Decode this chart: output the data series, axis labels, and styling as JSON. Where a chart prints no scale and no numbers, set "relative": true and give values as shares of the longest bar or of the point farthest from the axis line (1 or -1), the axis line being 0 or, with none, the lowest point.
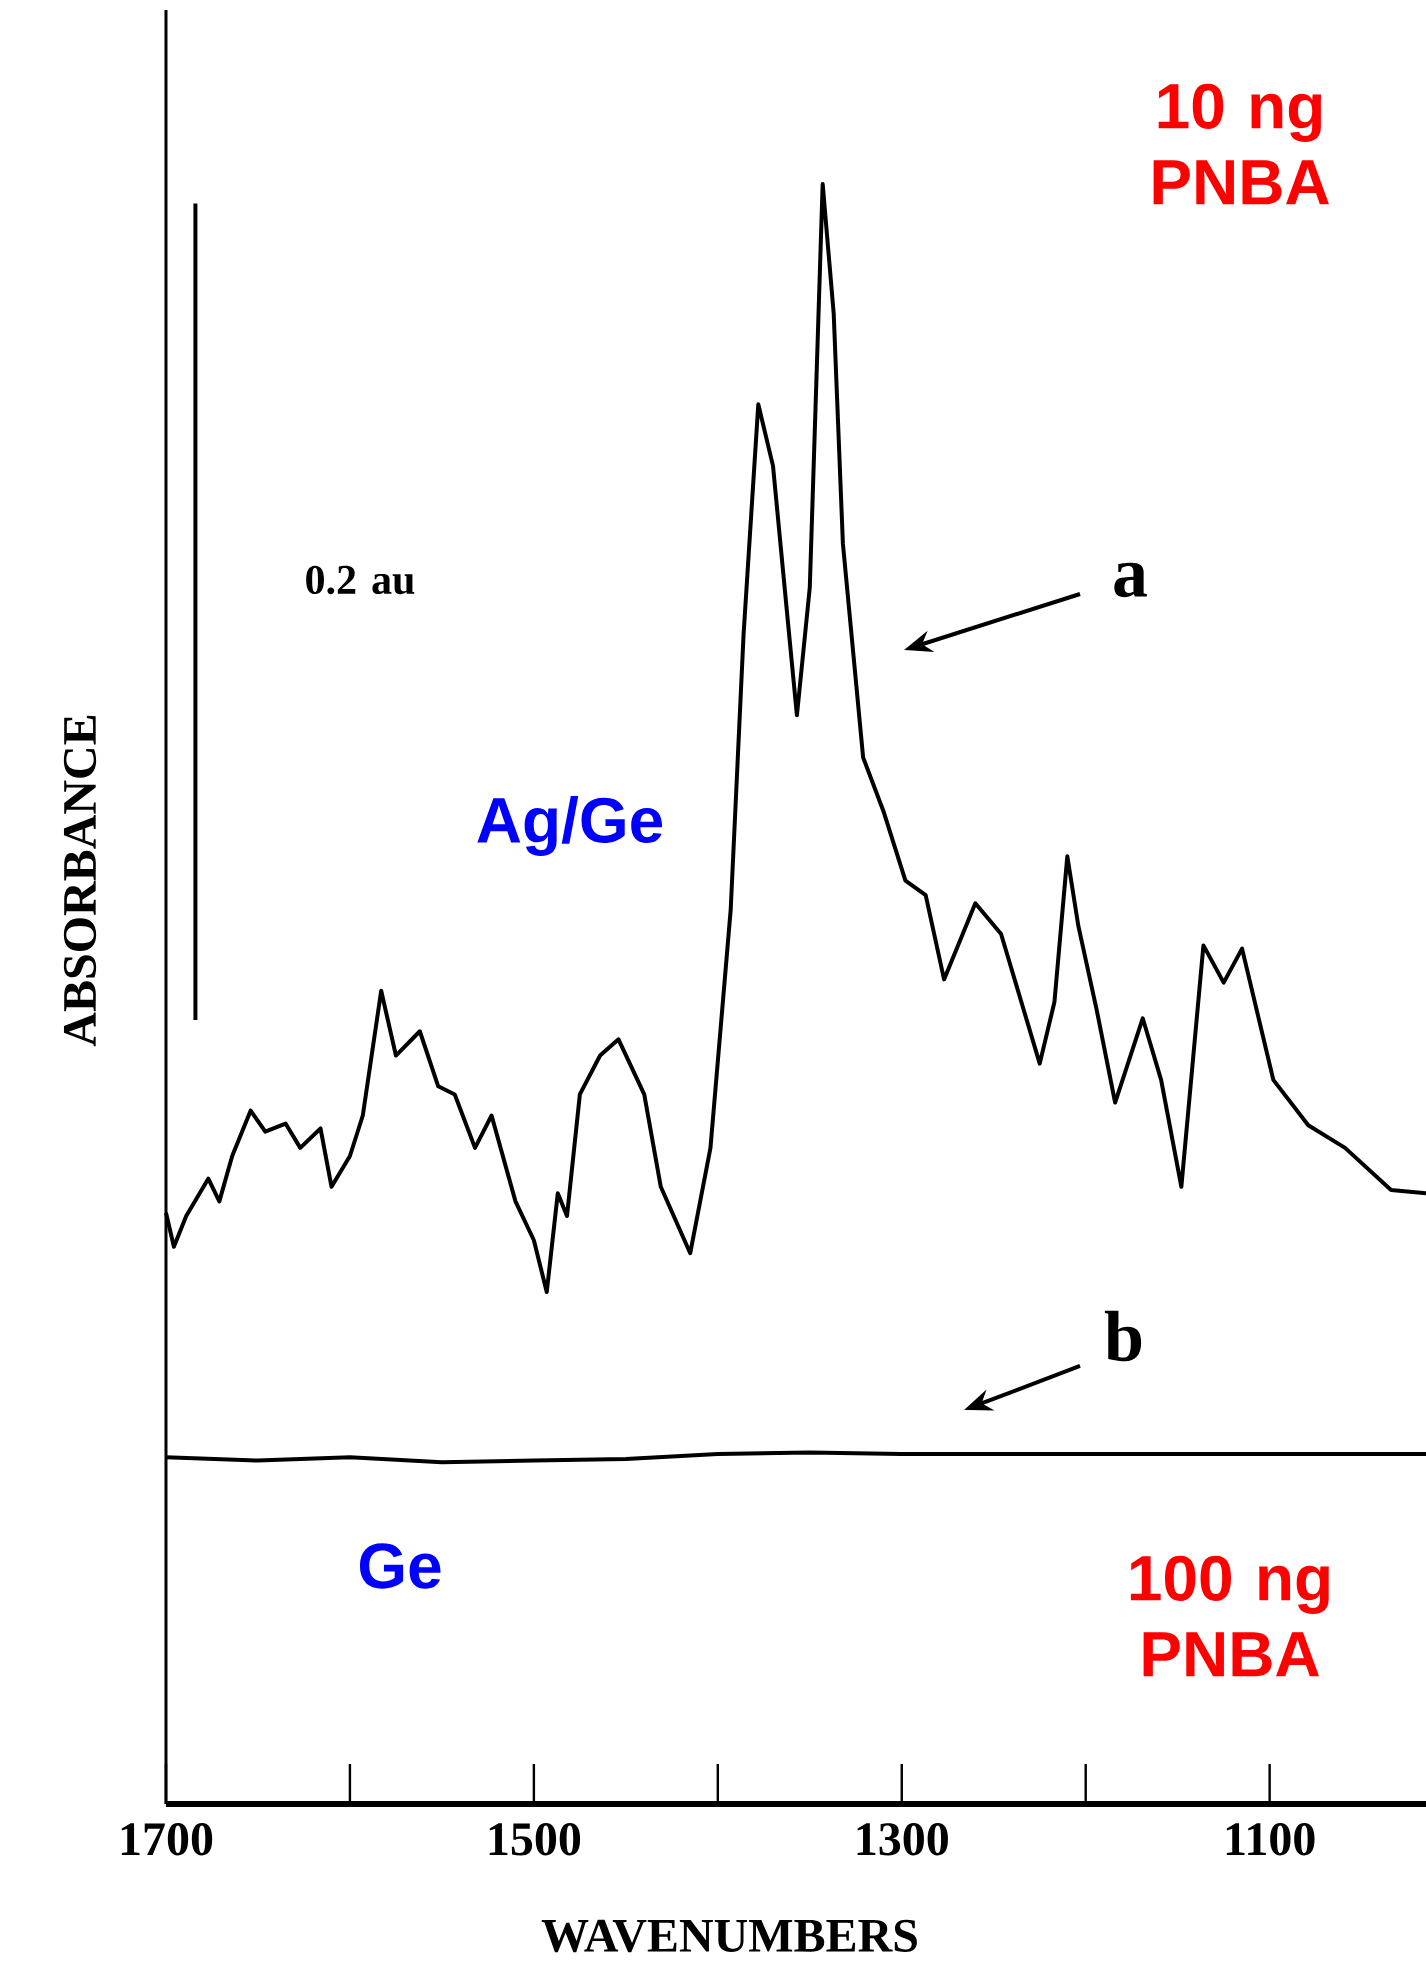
{
  "chart_data": {
    "type": "line",
    "relative": true,
    "xlabel": "WAVENUMBERS",
    "ylabel": "ABSORBANCE",
    "xlim": [
      1700,
      1015
    ],
    "xticks": [
      1700,
      1500,
      1300,
      1100
    ],
    "annotations": [
      "10 ng PNBA",
      "0.2 au",
      "Ag/Ge",
      "Ge",
      "100 ng PNBA",
      "a",
      "b"
    ],
    "series": [
      {
        "color": "#000000",
        "x": [
          1700,
          1695.7,
          1689,
          1677,
          1671,
          1664,
          1654,
          1646,
          1635,
          1627,
          1616,
          1610,
          1600,
          1593,
          1583,
          1575,
          1562,
          1552,
          1543,
          1532,
          1523,
          1510,
          1500,
          1493,
          1487,
          1482,
          1475,
          1464,
          1454,
          1440,
          1431,
          1415,
          1404,
          1393,
          1386,
          1378,
          1370,
          1362,
          1357,
          1350,
          1343,
          1337,
          1332,
          1321,
          1310,
          1298,
          1287,
          1277,
          1260,
          1246,
          1225,
          1217,
          1210,
          1204,
          1194,
          1184,
          1169,
          1159,
          1148,
          1136,
          1125,
          1115,
          1098,
          1079,
          1059,
          1034,
          1015
        ],
        "values": [
          0.365,
          0.344,
          0.363,
          0.386,
          0.372,
          0.4,
          0.428,
          0.415,
          0.42,
          0.405,
          0.417,
          0.381,
          0.4,
          0.425,
          0.502,
          0.462,
          0.477,
          0.443,
          0.438,
          0.405,
          0.425,
          0.372,
          0.348,
          0.316,
          0.377,
          0.363,
          0.438,
          0.462,
          0.472,
          0.438,
          0.381,
          0.34,
          0.405,
          0.552,
          0.722,
          0.864,
          0.826,
          0.731,
          0.672,
          0.751,
          1.0,
          0.92,
          0.778,
          0.646,
          0.613,
          0.57,
          0.561,
          0.509,
          0.556,
          0.537,
          0.457,
          0.495,
          0.585,
          0.542,
          0.49,
          0.433,
          0.485,
          0.447,
          0.381,
          0.53,
          0.507,
          0.528,
          0.447,
          0.419,
          0.405,
          0.379,
          0.377
        ]
      },
      {
        "type": "line",
        "color": "#000000",
        "x": [
          1684,
          1684
        ],
        "values": [
          0.484,
          0.988
        ]
      },
      {
        "color": "#000000",
        "x": [
          1700,
          1650,
          1600,
          1550,
          1500,
          1450,
          1400,
          1350,
          1300,
          1200,
          1100,
          1015
        ],
        "values": [
          0.214,
          0.212,
          0.214,
          0.211,
          0.212,
          0.213,
          0.216,
          0.217,
          0.216,
          0.216,
          0.216,
          0.216
        ]
      }
    ]
  }
}
